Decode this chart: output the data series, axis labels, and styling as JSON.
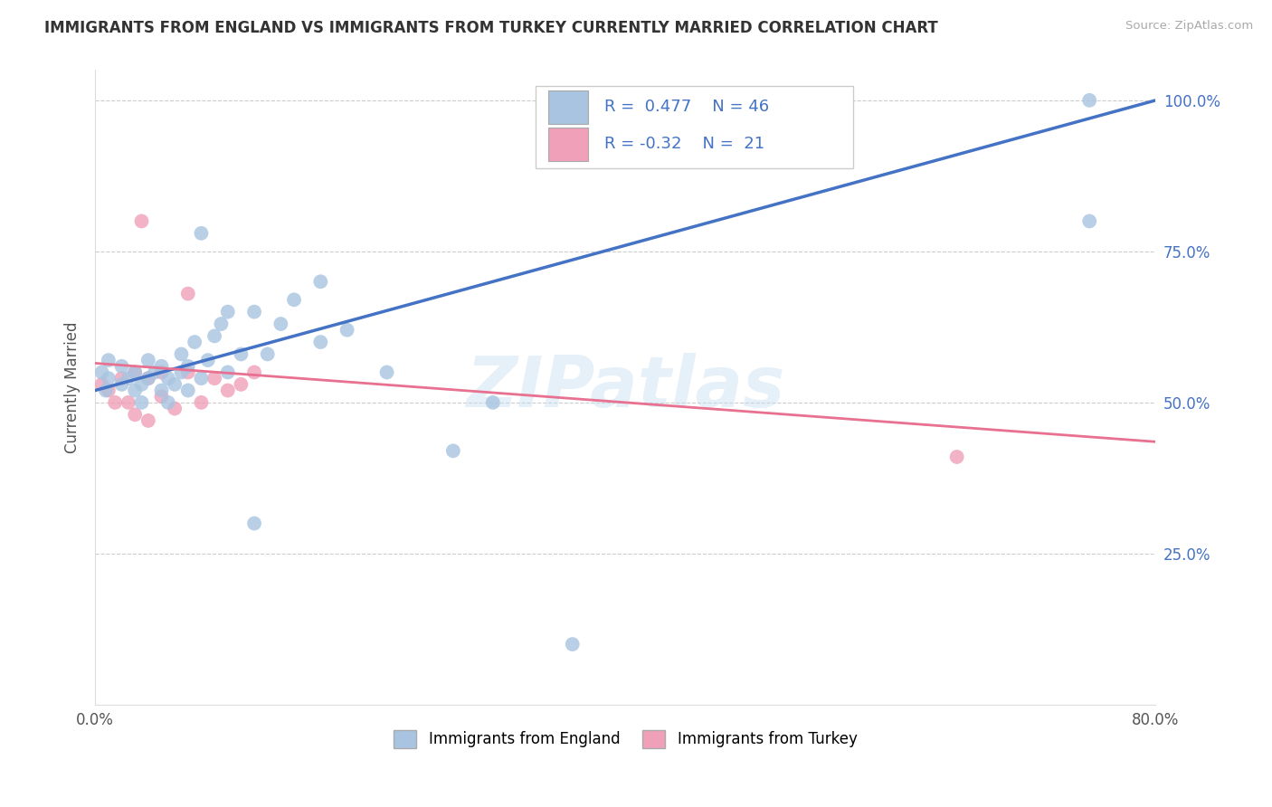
{
  "title": "IMMIGRANTS FROM ENGLAND VS IMMIGRANTS FROM TURKEY CURRENTLY MARRIED CORRELATION CHART",
  "source": "Source: ZipAtlas.com",
  "ylabel_label": "Currently Married",
  "x_min": 0.0,
  "x_max": 0.8,
  "y_min": 0.0,
  "y_max": 1.05,
  "x_tick_positions": [
    0.0,
    0.1,
    0.2,
    0.3,
    0.4,
    0.5,
    0.6,
    0.7,
    0.8
  ],
  "x_tick_labels": [
    "0.0%",
    "",
    "",
    "",
    "",
    "",
    "",
    "",
    "80.0%"
  ],
  "y_tick_positions": [
    0.0,
    0.25,
    0.5,
    0.75,
    1.0
  ],
  "y_tick_labels_right": [
    "",
    "25.0%",
    "50.0%",
    "75.0%",
    "100.0%"
  ],
  "england_color": "#a8c4e0",
  "turkey_color": "#f0a0b8",
  "england_line_color": "#4472c4",
  "turkey_line_color": "#e87090",
  "england_R": 0.477,
  "england_N": 46,
  "turkey_R": -0.32,
  "turkey_N": 21,
  "watermark": "ZIPatlas",
  "legend_label_england": "Immigrants from England",
  "legend_label_turkey": "Immigrants from Turkey",
  "eng_line_x0": 0.0,
  "eng_line_y0": 0.52,
  "eng_line_x1": 0.8,
  "eng_line_y1": 1.0,
  "tur_line_x0": 0.0,
  "tur_line_y0": 0.565,
  "tur_line_x1": 0.8,
  "tur_line_y1": 0.435,
  "england_scatter_x": [
    0.005,
    0.008,
    0.01,
    0.01,
    0.02,
    0.02,
    0.025,
    0.03,
    0.03,
    0.035,
    0.035,
    0.04,
    0.04,
    0.045,
    0.05,
    0.05,
    0.055,
    0.055,
    0.06,
    0.065,
    0.065,
    0.07,
    0.07,
    0.075,
    0.08,
    0.085,
    0.09,
    0.095,
    0.1,
    0.1,
    0.11,
    0.12,
    0.13,
    0.14,
    0.15,
    0.17,
    0.17,
    0.19,
    0.22,
    0.27,
    0.3,
    0.36,
    0.75,
    0.75,
    0.08,
    0.12
  ],
  "england_scatter_y": [
    0.55,
    0.52,
    0.54,
    0.57,
    0.53,
    0.56,
    0.54,
    0.52,
    0.55,
    0.5,
    0.53,
    0.54,
    0.57,
    0.55,
    0.52,
    0.56,
    0.5,
    0.54,
    0.53,
    0.55,
    0.58,
    0.52,
    0.56,
    0.6,
    0.54,
    0.57,
    0.61,
    0.63,
    0.55,
    0.65,
    0.58,
    0.65,
    0.58,
    0.63,
    0.67,
    0.6,
    0.7,
    0.62,
    0.55,
    0.42,
    0.5,
    0.1,
    1.0,
    0.8,
    0.78,
    0.3
  ],
  "turkey_scatter_x": [
    0.005,
    0.01,
    0.015,
    0.02,
    0.025,
    0.03,
    0.03,
    0.04,
    0.04,
    0.05,
    0.05,
    0.06,
    0.07,
    0.07,
    0.08,
    0.09,
    0.1,
    0.11,
    0.12,
    0.65,
    0.035
  ],
  "turkey_scatter_y": [
    0.53,
    0.52,
    0.5,
    0.54,
    0.5,
    0.48,
    0.55,
    0.47,
    0.54,
    0.51,
    0.55,
    0.49,
    0.55,
    0.68,
    0.5,
    0.54,
    0.52,
    0.53,
    0.55,
    0.41,
    0.8
  ],
  "england_dot_size": 130,
  "turkey_dot_size": 130
}
